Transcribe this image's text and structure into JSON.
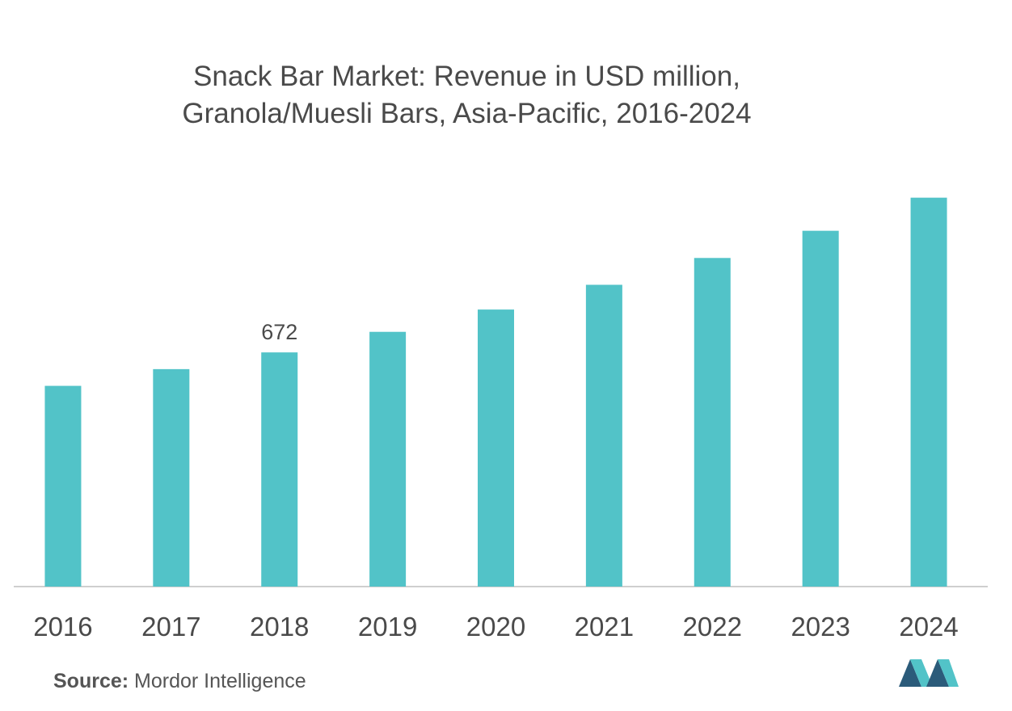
{
  "title_line1": "Snack Bar Market: Revenue in USD million,",
  "title_line2": "Granola/Muesli Bars, Asia-Pacific, 2016-2024",
  "source_label": "Source:",
  "source_value": "Mordor Intelligence",
  "colors": {
    "bar": "#52C3C8",
    "axis": "#bfbfbf",
    "logo_dark": "#2B5B7A",
    "logo_light": "#52C3C8"
  },
  "chart_data": {
    "type": "bar",
    "title": "Snack Bar Market: Revenue in USD million, Granola/Muesli Bars, Asia-Pacific, 2016-2024",
    "categories": [
      "2016",
      "2017",
      "2018",
      "2019",
      "2020",
      "2021",
      "2022",
      "2023",
      "2024"
    ],
    "values": [
      576,
      624,
      672,
      731,
      795,
      866,
      943,
      1021,
      1116
    ],
    "data_labels": [
      {
        "index": 2,
        "text": "672"
      }
    ],
    "xlabel": "",
    "ylabel": "",
    "ylim": [
      0,
      1150
    ],
    "grid": false,
    "legend": "none"
  }
}
